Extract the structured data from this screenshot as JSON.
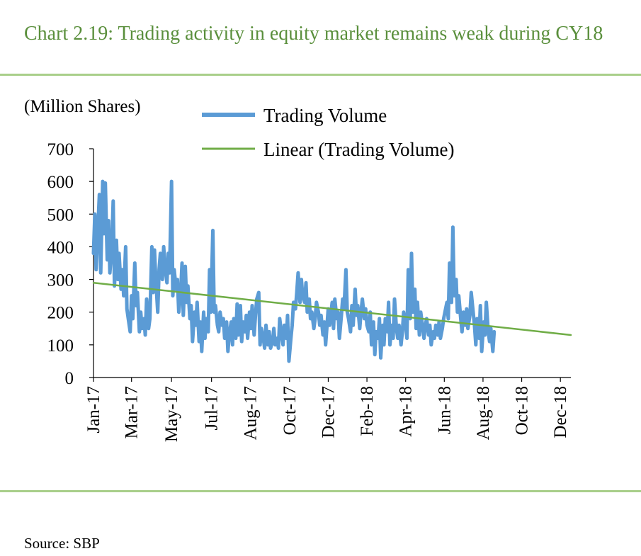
{
  "title": "Chart 2.19: Trading activity in equity market remains weak during CY18",
  "source": "Source:  SBP",
  "chart_data": {
    "type": "line",
    "ylabel": "(Million Shares)",
    "ylim": [
      0,
      700
    ],
    "yticks": [
      0,
      100,
      200,
      300,
      400,
      500,
      600,
      700
    ],
    "xlim": [
      "2017-01-02",
      "2018-12-31"
    ],
    "xticks": [
      {
        "label": "Jan-17",
        "date": "2017-01-02"
      },
      {
        "label": "Mar-17",
        "date": "2017-03-01"
      },
      {
        "label": "May-17",
        "date": "2017-05-01"
      },
      {
        "label": "Jul-17",
        "date": "2017-07-01"
      },
      {
        "label": "Aug-17",
        "date": "2017-08-29"
      },
      {
        "label": "Oct-17",
        "date": "2017-10-28"
      },
      {
        "label": "Dec-17",
        "date": "2017-12-26"
      },
      {
        "label": "Feb-18",
        "date": "2018-02-23"
      },
      {
        "label": "Apr-18",
        "date": "2018-04-23"
      },
      {
        "label": "Jun-18",
        "date": "2018-06-21"
      },
      {
        "label": "Aug-18",
        "date": "2018-08-19"
      },
      {
        "label": "Oct-18",
        "date": "2018-10-17"
      },
      {
        "label": "Dec-18",
        "date": "2018-12-15"
      }
    ],
    "legend_position": "top",
    "series": [
      {
        "name": "Trading Volume",
        "color": "#5b9bd5",
        "points": [
          [
            "2017-01-02",
            380
          ],
          [
            "2017-01-04",
            500
          ],
          [
            "2017-01-06",
            330
          ],
          [
            "2017-01-09",
            470
          ],
          [
            "2017-01-11",
            560
          ],
          [
            "2017-01-13",
            320
          ],
          [
            "2017-01-16",
            600
          ],
          [
            "2017-01-18",
            440
          ],
          [
            "2017-01-20",
            595
          ],
          [
            "2017-01-23",
            360
          ],
          [
            "2017-01-25",
            480
          ],
          [
            "2017-01-27",
            320
          ],
          [
            "2017-01-30",
            400
          ],
          [
            "2017-02-01",
            540
          ],
          [
            "2017-02-03",
            280
          ],
          [
            "2017-02-06",
            420
          ],
          [
            "2017-02-08",
            300
          ],
          [
            "2017-02-10",
            380
          ],
          [
            "2017-02-13",
            270
          ],
          [
            "2017-02-15",
            330
          ],
          [
            "2017-02-17",
            250
          ],
          [
            "2017-02-20",
            400
          ],
          [
            "2017-02-22",
            210
          ],
          [
            "2017-02-24",
            180
          ],
          [
            "2017-02-27",
            140
          ],
          [
            "2017-03-01",
            250
          ],
          [
            "2017-03-03",
            180
          ],
          [
            "2017-03-06",
            350
          ],
          [
            "2017-03-08",
            220
          ],
          [
            "2017-03-10",
            260
          ],
          [
            "2017-03-13",
            140
          ],
          [
            "2017-03-15",
            200
          ],
          [
            "2017-03-17",
            150
          ],
          [
            "2017-03-20",
            180
          ],
          [
            "2017-03-22",
            130
          ],
          [
            "2017-03-24",
            240
          ],
          [
            "2017-03-27",
            150
          ],
          [
            "2017-03-29",
            180
          ],
          [
            "2017-04-01",
            400
          ],
          [
            "2017-04-03",
            260
          ],
          [
            "2017-04-05",
            390
          ],
          [
            "2017-04-07",
            300
          ],
          [
            "2017-04-10",
            200
          ],
          [
            "2017-04-12",
            330
          ],
          [
            "2017-04-14",
            380
          ],
          [
            "2017-04-17",
            300
          ],
          [
            "2017-04-19",
            400
          ],
          [
            "2017-04-21",
            340
          ],
          [
            "2017-04-24",
            290
          ],
          [
            "2017-04-26",
            380
          ],
          [
            "2017-04-28",
            320
          ],
          [
            "2017-05-01",
            600
          ],
          [
            "2017-05-03",
            250
          ],
          [
            "2017-05-05",
            330
          ],
          [
            "2017-05-08",
            270
          ],
          [
            "2017-05-10",
            300
          ],
          [
            "2017-05-12",
            200
          ],
          [
            "2017-05-15",
            260
          ],
          [
            "2017-05-17",
            350
          ],
          [
            "2017-05-19",
            190
          ],
          [
            "2017-05-22",
            340
          ],
          [
            "2017-05-24",
            230
          ],
          [
            "2017-05-26",
            280
          ],
          [
            "2017-05-29",
            180
          ],
          [
            "2017-05-31",
            220
          ],
          [
            "2017-06-02",
            110
          ],
          [
            "2017-06-05",
            200
          ],
          [
            "2017-06-07",
            160
          ],
          [
            "2017-06-09",
            230
          ],
          [
            "2017-06-12",
            110
          ],
          [
            "2017-06-14",
            170
          ],
          [
            "2017-06-16",
            80
          ],
          [
            "2017-06-19",
            200
          ],
          [
            "2017-06-21",
            120
          ],
          [
            "2017-06-23",
            180
          ],
          [
            "2017-06-26",
            140
          ],
          [
            "2017-06-28",
            330
          ],
          [
            "2017-06-30",
            200
          ],
          [
            "2017-07-03",
            450
          ],
          [
            "2017-07-05",
            200
          ],
          [
            "2017-07-07",
            220
          ],
          [
            "2017-07-10",
            160
          ],
          [
            "2017-07-12",
            140
          ],
          [
            "2017-07-14",
            200
          ],
          [
            "2017-07-17",
            160
          ],
          [
            "2017-07-19",
            180
          ],
          [
            "2017-07-21",
            120
          ],
          [
            "2017-07-24",
            170
          ],
          [
            "2017-07-26",
            80
          ],
          [
            "2017-07-28",
            130
          ],
          [
            "2017-07-31",
            170
          ],
          [
            "2017-08-02",
            100
          ],
          [
            "2017-08-04",
            180
          ],
          [
            "2017-08-07",
            120
          ],
          [
            "2017-08-09",
            225
          ],
          [
            "2017-08-11",
            130
          ],
          [
            "2017-08-14",
            220
          ],
          [
            "2017-08-16",
            110
          ],
          [
            "2017-08-18",
            170
          ],
          [
            "2017-08-21",
            140
          ],
          [
            "2017-08-23",
            190
          ],
          [
            "2017-08-25",
            120
          ],
          [
            "2017-08-28",
            200
          ],
          [
            "2017-08-30",
            150
          ],
          [
            "2017-09-01",
            220
          ],
          [
            "2017-09-04",
            130
          ],
          [
            "2017-09-06",
            190
          ],
          [
            "2017-09-08",
            240
          ],
          [
            "2017-09-11",
            260
          ],
          [
            "2017-09-13",
            100
          ],
          [
            "2017-09-15",
            150
          ],
          [
            "2017-09-18",
            120
          ],
          [
            "2017-09-20",
            90
          ],
          [
            "2017-09-22",
            160
          ],
          [
            "2017-09-25",
            100
          ],
          [
            "2017-09-27",
            140
          ],
          [
            "2017-09-29",
            90
          ],
          [
            "2017-10-02",
            110
          ],
          [
            "2017-10-04",
            150
          ],
          [
            "2017-10-06",
            100
          ],
          [
            "2017-10-09",
            120
          ],
          [
            "2017-10-11",
            90
          ],
          [
            "2017-10-13",
            180
          ],
          [
            "2017-10-16",
            130
          ],
          [
            "2017-10-18",
            100
          ],
          [
            "2017-10-20",
            160
          ],
          [
            "2017-10-23",
            120
          ],
          [
            "2017-10-25",
            190
          ],
          [
            "2017-10-27",
            50
          ],
          [
            "2017-10-30",
            120
          ],
          [
            "2017-11-01",
            160
          ],
          [
            "2017-11-03",
            230
          ],
          [
            "2017-11-06",
            210
          ],
          [
            "2017-11-08",
            260
          ],
          [
            "2017-11-10",
            320
          ],
          [
            "2017-11-13",
            230
          ],
          [
            "2017-11-15",
            300
          ],
          [
            "2017-11-17",
            250
          ],
          [
            "2017-11-20",
            230
          ],
          [
            "2017-11-22",
            290
          ],
          [
            "2017-11-24",
            200
          ],
          [
            "2017-11-27",
            240
          ],
          [
            "2017-11-29",
            180
          ],
          [
            "2017-12-01",
            200
          ],
          [
            "2017-12-04",
            150
          ],
          [
            "2017-12-06",
            180
          ],
          [
            "2017-12-08",
            230
          ],
          [
            "2017-12-11",
            200
          ],
          [
            "2017-12-13",
            160
          ],
          [
            "2017-12-15",
            190
          ],
          [
            "2017-12-18",
            130
          ],
          [
            "2017-12-20",
            170
          ],
          [
            "2017-12-22",
            100
          ],
          [
            "2017-12-26",
            210
          ],
          [
            "2017-12-28",
            160
          ],
          [
            "2018-01-01",
            230
          ],
          [
            "2018-01-03",
            150
          ],
          [
            "2018-01-05",
            240
          ],
          [
            "2018-01-08",
            180
          ],
          [
            "2018-01-10",
            200
          ],
          [
            "2018-01-12",
            120
          ],
          [
            "2018-01-15",
            190
          ],
          [
            "2018-01-17",
            240
          ],
          [
            "2018-01-19",
            210
          ],
          [
            "2018-01-22",
            330
          ],
          [
            "2018-01-24",
            200
          ],
          [
            "2018-01-26",
            180
          ],
          [
            "2018-01-29",
            140
          ],
          [
            "2018-01-31",
            220
          ],
          [
            "2018-02-02",
            160
          ],
          [
            "2018-02-05",
            270
          ],
          [
            "2018-02-07",
            190
          ],
          [
            "2018-02-09",
            220
          ],
          [
            "2018-02-12",
            150
          ],
          [
            "2018-02-14",
            200
          ],
          [
            "2018-02-16",
            240
          ],
          [
            "2018-02-19",
            180
          ],
          [
            "2018-02-21",
            210
          ],
          [
            "2018-02-23",
            160
          ],
          [
            "2018-02-26",
            140
          ],
          [
            "2018-02-28",
            200
          ],
          [
            "2018-03-02",
            100
          ],
          [
            "2018-03-05",
            170
          ],
          [
            "2018-03-07",
            70
          ],
          [
            "2018-03-09",
            140
          ],
          [
            "2018-03-12",
            120
          ],
          [
            "2018-03-14",
            180
          ],
          [
            "2018-03-16",
            60
          ],
          [
            "2018-03-19",
            160
          ],
          [
            "2018-03-21",
            100
          ],
          [
            "2018-03-23",
            180
          ],
          [
            "2018-03-26",
            140
          ],
          [
            "2018-03-28",
            230
          ],
          [
            "2018-03-30",
            100
          ],
          [
            "2018-04-02",
            160
          ],
          [
            "2018-04-04",
            120
          ],
          [
            "2018-04-06",
            240
          ],
          [
            "2018-04-09",
            150
          ],
          [
            "2018-04-11",
            120
          ],
          [
            "2018-04-13",
            160
          ],
          [
            "2018-04-16",
            100
          ],
          [
            "2018-04-18",
            140
          ],
          [
            "2018-04-20",
            200
          ],
          [
            "2018-04-23",
            160
          ],
          [
            "2018-04-25",
            120
          ],
          [
            "2018-04-27",
            330
          ],
          [
            "2018-04-30",
            180
          ],
          [
            "2018-05-02",
            380
          ],
          [
            "2018-05-04",
            200
          ],
          [
            "2018-05-07",
            270
          ],
          [
            "2018-05-09",
            150
          ],
          [
            "2018-05-11",
            230
          ],
          [
            "2018-05-14",
            130
          ],
          [
            "2018-05-16",
            200
          ],
          [
            "2018-05-18",
            170
          ],
          [
            "2018-05-21",
            120
          ],
          [
            "2018-05-23",
            160
          ],
          [
            "2018-05-25",
            180
          ],
          [
            "2018-05-28",
            130
          ],
          [
            "2018-05-30",
            160
          ],
          [
            "2018-06-01",
            100
          ],
          [
            "2018-06-04",
            140
          ],
          [
            "2018-06-06",
            120
          ],
          [
            "2018-06-08",
            160
          ],
          [
            "2018-06-11",
            130
          ],
          [
            "2018-06-13",
            170
          ],
          [
            "2018-06-15",
            120
          ],
          [
            "2018-06-18",
            150
          ],
          [
            "2018-06-20",
            180
          ],
          [
            "2018-06-22",
            200
          ],
          [
            "2018-06-25",
            230
          ],
          [
            "2018-06-27",
            180
          ],
          [
            "2018-06-29",
            350
          ],
          [
            "2018-07-02",
            230
          ],
          [
            "2018-07-04",
            460
          ],
          [
            "2018-07-06",
            250
          ],
          [
            "2018-07-09",
            300
          ],
          [
            "2018-07-11",
            200
          ],
          [
            "2018-07-13",
            250
          ],
          [
            "2018-07-16",
            180
          ],
          [
            "2018-07-18",
            140
          ],
          [
            "2018-07-20",
            200
          ],
          [
            "2018-07-23",
            160
          ],
          [
            "2018-07-25",
            210
          ],
          [
            "2018-07-27",
            150
          ],
          [
            "2018-07-30",
            190
          ],
          [
            "2018-08-01",
            260
          ],
          [
            "2018-08-03",
            220
          ],
          [
            "2018-08-06",
            160
          ],
          [
            "2018-08-08",
            100
          ],
          [
            "2018-08-10",
            180
          ],
          [
            "2018-08-13",
            120
          ],
          [
            "2018-08-15",
            220
          ],
          [
            "2018-08-17",
            80
          ],
          [
            "2018-08-20",
            170
          ],
          [
            "2018-08-22",
            130
          ],
          [
            "2018-08-24",
            230
          ],
          [
            "2018-08-27",
            140
          ],
          [
            "2018-08-29",
            110
          ],
          [
            "2018-08-31",
            150
          ],
          [
            "2018-09-03",
            80
          ],
          [
            "2018-09-05",
            140
          ]
        ]
      },
      {
        "name": "Linear (Trading Volume)",
        "color": "#70ad47",
        "points": [
          [
            "2017-01-02",
            290
          ],
          [
            "2018-12-31",
            130
          ]
        ]
      }
    ]
  }
}
